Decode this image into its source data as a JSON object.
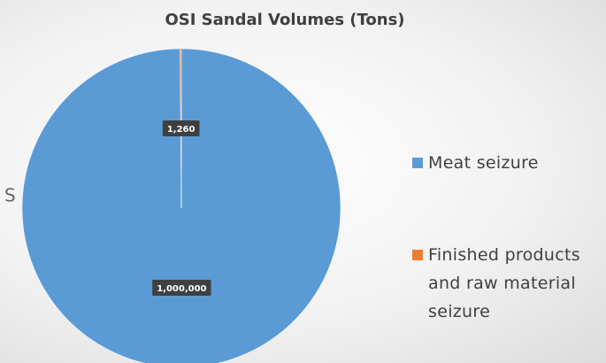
{
  "slide_fragment": "S",
  "chart_data": {
    "type": "pie",
    "title": "OSI Sandal Volumes (Tons)",
    "categories": [
      "Meat seizure",
      "Finished products and raw material seizure"
    ],
    "values": [
      1000000,
      1260
    ],
    "value_labels": [
      "1,000,000",
      "1,260"
    ],
    "colors": [
      "#5b9bd5",
      "#ed7d31"
    ],
    "legend": "right"
  }
}
